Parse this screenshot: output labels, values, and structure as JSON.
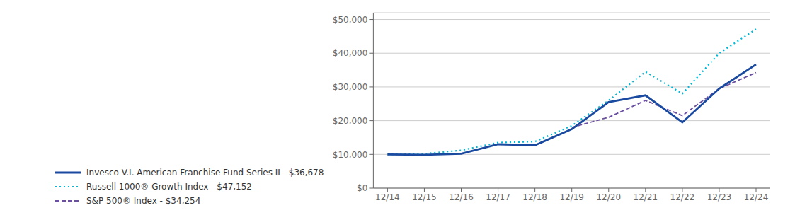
{
  "chart_data": {
    "type": "line",
    "categories": [
      "12/14",
      "12/15",
      "12/16",
      "12/17",
      "12/18",
      "12/19",
      "12/20",
      "12/21",
      "12/22",
      "12/23",
      "12/24"
    ],
    "series": [
      {
        "name": "Invesco V.I. American Franchise Fund Series II - $36,678",
        "color": "#1a4a9f",
        "line_style": "solid",
        "values": [
          10000,
          9900,
          10200,
          13000,
          12700,
          17500,
          25500,
          27500,
          19500,
          29500,
          36678
        ]
      },
      {
        "name": "Russell 1000® Growth Index - $47,152",
        "color": "#00b8d8",
        "line_style": "dotted",
        "values": [
          10000,
          10200,
          11200,
          13500,
          13800,
          18500,
          26000,
          34500,
          28000,
          40000,
          47152
        ]
      },
      {
        "name": "S&P 500® Index - $34,254",
        "color": "#6b4fa0",
        "line_style": "dashed",
        "values": [
          null,
          null,
          null,
          null,
          null,
          18000,
          21000,
          26000,
          21500,
          29500,
          34254
        ]
      }
    ],
    "ylim": [
      0,
      52000
    ],
    "yticks": [
      {
        "value": 0,
        "label": "$0"
      },
      {
        "value": 10000,
        "label": "$10,000"
      },
      {
        "value": 20000,
        "label": "$20,000"
      },
      {
        "value": 30000,
        "label": "$30,000"
      },
      {
        "value": 40000,
        "label": "$40,000"
      },
      {
        "value": 50000,
        "label": "$50,000"
      }
    ],
    "grid": true,
    "legend": "bottom left"
  }
}
